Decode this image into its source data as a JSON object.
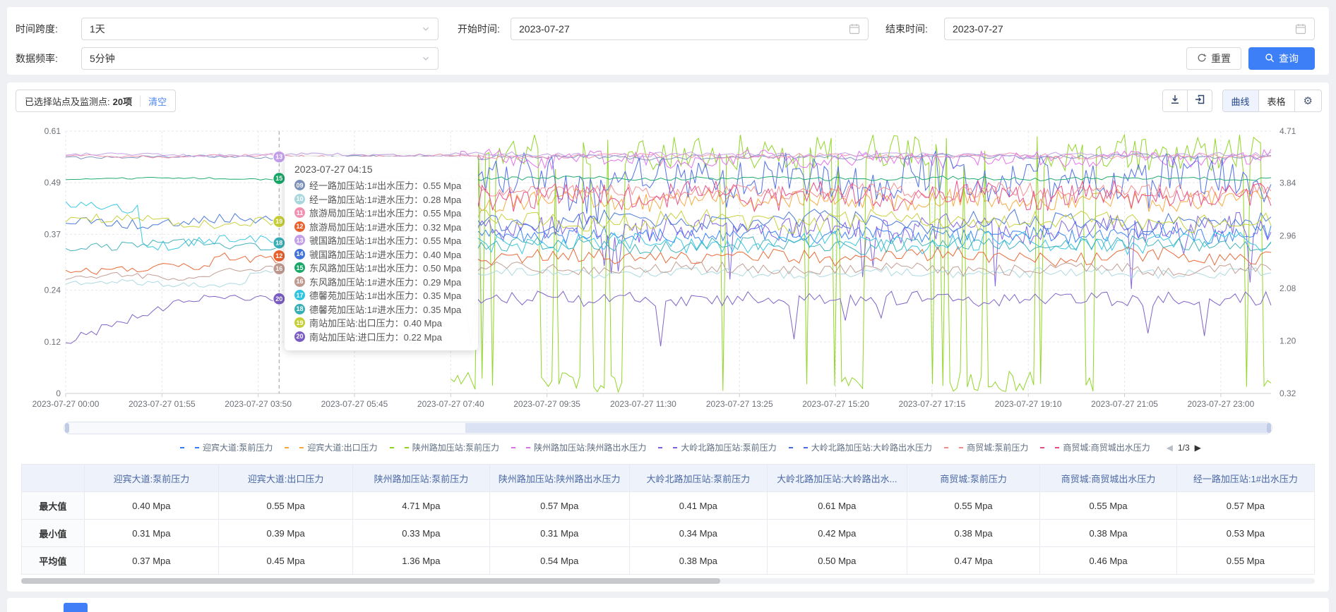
{
  "colors": {
    "primary": "#3d7ff7",
    "link": "#4e86f0"
  },
  "filters": {
    "time_span": {
      "label": "时间跨度:",
      "value": "1天"
    },
    "data_frequency": {
      "label": "数据频率:",
      "value": "5分钟"
    },
    "start_time": {
      "label": "开始时间:",
      "value": "2023-07-27"
    },
    "end_time": {
      "label": "结束时间:",
      "value": "2023-07-27"
    },
    "reset_label": "重置",
    "query_label": "查询"
  },
  "selection": {
    "label": "已选择站点及监测点:",
    "count": "20项",
    "clear_label": "清空"
  },
  "toolbar": {
    "curve_label": "曲线",
    "table_label": "表格",
    "icons": [
      "download-icon",
      "export-icon",
      "gear-icon"
    ],
    "gear_glyph": "⚙"
  },
  "legend": {
    "page": "1/3",
    "prev_icon": "◀",
    "next_icon": "▶",
    "items": [
      {
        "num": "01",
        "label": "迎宾大道:泵前压力"
      },
      {
        "num": "02",
        "label": "迎宾大道:出口压力"
      },
      {
        "num": "03",
        "label": "陕州路加压站:泵前压力"
      },
      {
        "num": "04",
        "label": "陕州路加压站:陕州路出水压力"
      },
      {
        "num": "05",
        "label": "大岭北路加压站:泵前压力"
      },
      {
        "num": "06",
        "label": "大岭北路加压站:大岭路出水压力"
      },
      {
        "num": "07",
        "label": "商贸城:泵前压力"
      },
      {
        "num": "08",
        "label": "商贸城:商贸城出水压力"
      }
    ]
  },
  "tooltip": {
    "title": "2023-07-27 04:15",
    "items": [
      {
        "num": "09",
        "name": "经一路加压站:1#出水压力",
        "value": "0.55 Mpa"
      },
      {
        "num": "10",
        "name": "经一路加压站:1#进水压力",
        "value": "0.28 Mpa"
      },
      {
        "num": "11",
        "name": "旅游局加压站:1#出水压力",
        "value": "0.55 Mpa"
      },
      {
        "num": "12",
        "name": "旅游局加压站:1#进水压力",
        "value": "0.32 Mpa"
      },
      {
        "num": "13",
        "name": "虢国路加压站:1#出水压力",
        "value": "0.55 Mpa"
      },
      {
        "num": "14",
        "name": "虢国路加压站:1#进水压力",
        "value": "0.40 Mpa"
      },
      {
        "num": "15",
        "name": "东风路加压站:1#出水压力",
        "value": "0.50 Mpa"
      },
      {
        "num": "16",
        "name": "东风路加压站:1#进水压力",
        "value": "0.29 Mpa"
      },
      {
        "num": "17",
        "name": "德馨苑加压站:1#出水压力",
        "value": "0.35 Mpa"
      },
      {
        "num": "18",
        "name": "德馨苑加压站:1#进水压力",
        "value": "0.35 Mpa"
      },
      {
        "num": "19",
        "name": "南站加压站:出口压力",
        "value": "0.40 Mpa"
      },
      {
        "num": "20",
        "name": "南站加压站:进口压力",
        "value": "0.22 Mpa"
      }
    ],
    "badges": [
      {
        "num": "13",
        "value": 0.55
      },
      {
        "num": "15",
        "value": 0.5
      },
      {
        "num": "19",
        "value": 0.4
      },
      {
        "num": "18",
        "value": 0.35
      },
      {
        "num": "12",
        "value": 0.32
      },
      {
        "num": "16",
        "value": 0.29
      },
      {
        "num": "20",
        "value": 0.22
      }
    ]
  },
  "chart_data": {
    "type": "line",
    "unit": "Mpa",
    "snapshot_time": "2023-07-27 04:15",
    "pointer_minute": 255,
    "x_axis": {
      "range_minutes": [
        0,
        1440
      ],
      "tick_minutes": [
        0,
        115,
        230,
        345,
        460,
        575,
        690,
        805,
        920,
        1035,
        1150,
        1265,
        1380
      ],
      "tick_labels": [
        "2023-07-27 00:00",
        "2023-07-27 01:55",
        "2023-07-27 03:50",
        "2023-07-27 05:45",
        "2023-07-27 07:40",
        "2023-07-27 09:35",
        "2023-07-27 11:30",
        "2023-07-27 13:25",
        "2023-07-27 15:20",
        "2023-07-27 17:15",
        "2023-07-27 19:10",
        "2023-07-27 21:05",
        "2023-07-27 23:00"
      ]
    },
    "left_axis": {
      "min": 0,
      "max": 0.61,
      "ticks": [
        0,
        0.12,
        0.24,
        0.37,
        0.49,
        0.61
      ],
      "tick_labels": [
        "0",
        "0.12",
        "0.24",
        "0.37",
        "0.49",
        "0.61"
      ]
    },
    "right_axis": {
      "min": 0.32,
      "max": 4.71,
      "ticks": [
        0.32,
        1.2,
        2.08,
        2.96,
        3.84,
        4.71
      ],
      "tick_labels": [
        "0.32",
        "1.20",
        "2.08",
        "2.96",
        "3.84",
        "4.71"
      ]
    },
    "series": [
      {
        "num": "01",
        "name": "迎宾大道:泵前压力",
        "color": "#2f7ef7",
        "axis": "left",
        "start_frac": 0.3194,
        "base": 0.37,
        "amp": 0.012,
        "max": 0.4,
        "min": 0.31,
        "avg": 0.37
      },
      {
        "num": "02",
        "name": "迎宾大道:出口压力",
        "color": "#f7a63a",
        "axis": "left",
        "start_frac": 0.3194,
        "base": 0.45,
        "amp": 0.015,
        "max": 0.55,
        "min": 0.39,
        "avg": 0.45
      },
      {
        "num": "03",
        "name": "陕州路加压站:泵前压力",
        "color": "#8bd41e",
        "axis": "right",
        "start_frac": 0.3194,
        "base": 1.36,
        "amp": 0,
        "pattern": "spike",
        "max": 4.71,
        "min": 0.33,
        "avg": 1.36
      },
      {
        "num": "04",
        "name": "陕州路加压站:陕州路出水压力",
        "color": "#e36ce8",
        "axis": "left",
        "start_frac": 0.3194,
        "base": 0.545,
        "amp": 0.012,
        "max": 0.57,
        "min": 0.31,
        "avg": 0.54
      },
      {
        "num": "05",
        "name": "大岭北路加压站:泵前压力",
        "color": "#7d5ce6",
        "axis": "left",
        "start_frac": 0.3194,
        "base": 0.385,
        "amp": 0.02,
        "dip": 0.16,
        "max": 0.41,
        "min": 0.34,
        "avg": 0.38
      },
      {
        "num": "06",
        "name": "大岭北路加压站:大岭路出水压力",
        "color": "#4968e8",
        "axis": "left",
        "start_frac": 0.3194,
        "base": 0.5,
        "amp": 0.035,
        "dip": 0.07,
        "max": 0.61,
        "min": 0.42,
        "avg": 0.5
      },
      {
        "num": "07",
        "name": "商贸城:泵前压力",
        "color": "#f58a8a",
        "axis": "left",
        "start_frac": 0.3194,
        "base": 0.47,
        "amp": 0.012,
        "max": 0.55,
        "min": 0.38,
        "avg": 0.47
      },
      {
        "num": "08",
        "name": "商贸城:商贸城出水压力",
        "color": "#e84a86",
        "axis": "left",
        "start_frac": 0.3194,
        "base": 0.46,
        "amp": 0.02,
        "max": 0.55,
        "min": 0.38,
        "avg": 0.46
      },
      {
        "num": "09",
        "name": "经一路加压站:1#出水压力",
        "color": "#7b90ba",
        "axis": "left",
        "start_frac": 0,
        "base": 0.55,
        "amp": 0.004,
        "value_0415": 0.55,
        "max": 0.57,
        "min": 0.53,
        "avg": 0.55
      },
      {
        "num": "10",
        "name": "经一路加压站:1#进水压力",
        "color": "#a8d8de",
        "axis": "left",
        "start_frac": 0,
        "base": 0.28,
        "amp": 0.008,
        "early": [
          0.15,
          -0.025
        ],
        "value_0415": 0.28
      },
      {
        "num": "11",
        "name": "旅游局加压站:1#出水压力",
        "color": "#f191b2",
        "axis": "left",
        "start_frac": 0,
        "base": 0.552,
        "amp": 0.004,
        "value_0415": 0.55
      },
      {
        "num": "12",
        "name": "旅游局加压站:1#进水压力",
        "color": "#e8622e",
        "axis": "left",
        "start_frac": 0,
        "base": 0.318,
        "amp": 0.012,
        "early": [
          0.12,
          -0.03
        ],
        "value_0415": 0.32
      },
      {
        "num": "13",
        "name": "虢国路加压站:1#出水压力",
        "color": "#c29fe8",
        "axis": "left",
        "start_frac": 0,
        "base": 0.555,
        "amp": 0.004,
        "value_0415": 0.55
      },
      {
        "num": "14",
        "name": "虢国路加压站:1#进水压力",
        "color": "#3f73d8",
        "axis": "left",
        "start_frac": 0,
        "base": 0.4,
        "amp": 0.015,
        "value_0415": 0.4
      },
      {
        "num": "15",
        "name": "东风路加压站:1#出水压力",
        "color": "#17a868",
        "axis": "left",
        "start_frac": 0,
        "base": 0.5,
        "amp": 0.003,
        "value_0415": 0.5
      },
      {
        "num": "16",
        "name": "东风路加压站:1#进水压力",
        "color": "#c09a90",
        "axis": "left",
        "start_frac": 0,
        "base": 0.29,
        "amp": 0.009,
        "early": [
          0.12,
          -0.02
        ],
        "value_0415": 0.29
      },
      {
        "num": "17",
        "name": "德馨苑加压站:1#出水压力",
        "color": "#2fc5e2",
        "axis": "left",
        "start_frac": 0,
        "base": 0.35,
        "amp": 0.015,
        "early": [
          0.06,
          0.085
        ],
        "value_0415": 0.35
      },
      {
        "num": "18",
        "name": "德馨苑加压站:1#进水压力",
        "color": "#3aafb8",
        "axis": "left",
        "start_frac": 0,
        "base": 0.345,
        "amp": 0.012,
        "value_0415": 0.35
      },
      {
        "num": "19",
        "name": "南站加压站:出口压力",
        "color": "#c6cf35",
        "axis": "left",
        "start_frac": 0,
        "base": 0.4,
        "amp": 0.015,
        "value_0415": 0.4
      },
      {
        "num": "20",
        "name": "南站加压站:进口压力",
        "color": "#7a5cc4",
        "axis": "left",
        "start_frac": 0,
        "base": 0.22,
        "amp": 0.012,
        "pattern": "ramp",
        "dip": 0.1,
        "value_0415": 0.22
      }
    ]
  },
  "table": {
    "corner": "",
    "columns": [
      "迎宾大道:泵前压力",
      "迎宾大道:出口压力",
      "陕州路加压站:泵前压力",
      "陕州路加压站:陕州路出水压力",
      "大岭北路加压站:泵前压力",
      "大岭北路加压站:大岭路出水...",
      "商贸城:泵前压力",
      "商贸城:商贸城出水压力",
      "经一路加压站:1#出水压力"
    ],
    "rows": [
      {
        "label": "最大值",
        "values": [
          "0.40 Mpa",
          "0.55 Mpa",
          "4.71 Mpa",
          "0.57 Mpa",
          "0.41 Mpa",
          "0.61 Mpa",
          "0.55 Mpa",
          "0.55 Mpa",
          "0.57 Mpa"
        ]
      },
      {
        "label": "最小值",
        "values": [
          "0.31 Mpa",
          "0.39 Mpa",
          "0.33 Mpa",
          "0.31 Mpa",
          "0.34 Mpa",
          "0.42 Mpa",
          "0.38 Mpa",
          "0.38 Mpa",
          "0.53 Mpa"
        ]
      },
      {
        "label": "平均值",
        "values": [
          "0.37 Mpa",
          "0.45 Mpa",
          "1.36 Mpa",
          "0.54 Mpa",
          "0.38 Mpa",
          "0.50 Mpa",
          "0.47 Mpa",
          "0.46 Mpa",
          "0.55 Mpa"
        ]
      }
    ]
  }
}
